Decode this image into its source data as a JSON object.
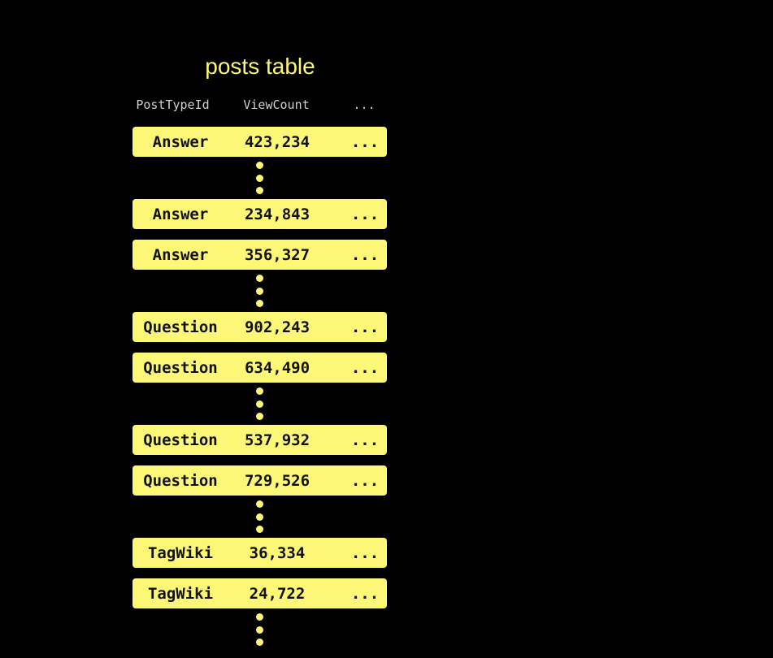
{
  "title": "posts table",
  "columns": [
    "PostTypeId",
    "ViewCount",
    "..."
  ],
  "rows": [
    {
      "type": "Answer",
      "views": "423,234",
      "more": "..."
    },
    {
      "type": "Answer",
      "views": "234,843",
      "more": "..."
    },
    {
      "type": "Answer",
      "views": "356,327",
      "more": "..."
    },
    {
      "type": "Question",
      "views": "902,243",
      "more": "..."
    },
    {
      "type": "Question",
      "views": "634,490",
      "more": "..."
    },
    {
      "type": "Question",
      "views": "537,932",
      "more": "..."
    },
    {
      "type": "Question",
      "views": "729,526",
      "more": "..."
    },
    {
      "type": "TagWiki",
      "views": "36,334",
      "more": "..."
    },
    {
      "type": "TagWiki",
      "views": "24,722",
      "more": "..."
    }
  ],
  "colors": {
    "accent": "#fdf777",
    "background": "#000000"
  }
}
